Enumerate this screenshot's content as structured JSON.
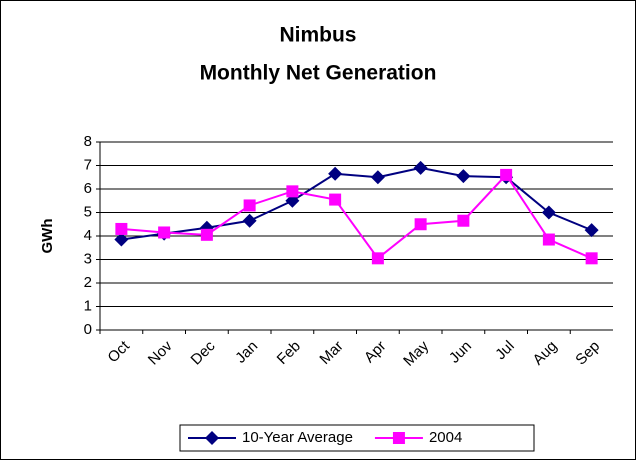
{
  "chart_data": {
    "type": "line",
    "title": "Nimbus",
    "subtitle": "Monthly Net Generation",
    "y_label": "GWh",
    "categories": [
      "Oct",
      "Nov",
      "Dec",
      "Jan",
      "Feb",
      "Mar",
      "Apr",
      "May",
      "Jun",
      "Jul",
      "Aug",
      "Sep"
    ],
    "series": [
      {
        "name": "10-Year Average",
        "color": "#000080",
        "marker": "diamond",
        "values": [
          3.85,
          4.1,
          4.35,
          4.65,
          5.5,
          6.65,
          6.5,
          6.9,
          6.55,
          6.5,
          5.0,
          4.25
        ]
      },
      {
        "name": "2004",
        "color": "#ff00ff",
        "marker": "square",
        "values": [
          4.3,
          4.15,
          4.05,
          5.3,
          5.9,
          5.55,
          3.05,
          4.5,
          4.65,
          6.6,
          3.85,
          3.05
        ]
      }
    ],
    "ylim": [
      0,
      8
    ],
    "yticks": [
      0,
      1,
      2,
      3,
      4,
      5,
      6,
      7,
      8
    ],
    "grid": true,
    "legend": "bottom"
  }
}
